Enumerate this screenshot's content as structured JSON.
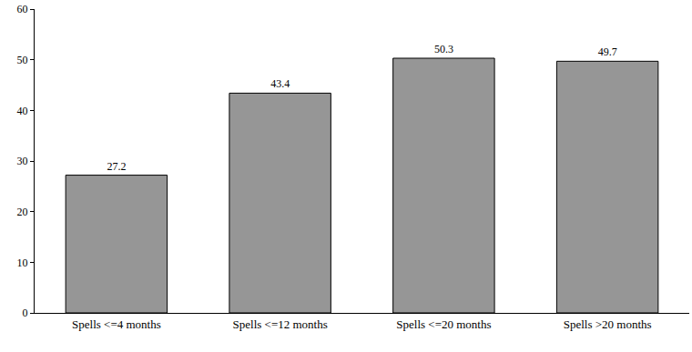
{
  "chart_data": {
    "type": "bar",
    "categories": [
      "Spells <=4 months",
      "Spells <=12 months",
      "Spells <=20 months",
      "Spells >20 months"
    ],
    "values": [
      27.2,
      43.4,
      50.3,
      49.7
    ],
    "color": "#969696",
    "ylim": [
      0,
      60
    ],
    "yticks": [
      0,
      10,
      20,
      30,
      40,
      50,
      60
    ],
    "grid": false,
    "data_labels": true
  }
}
